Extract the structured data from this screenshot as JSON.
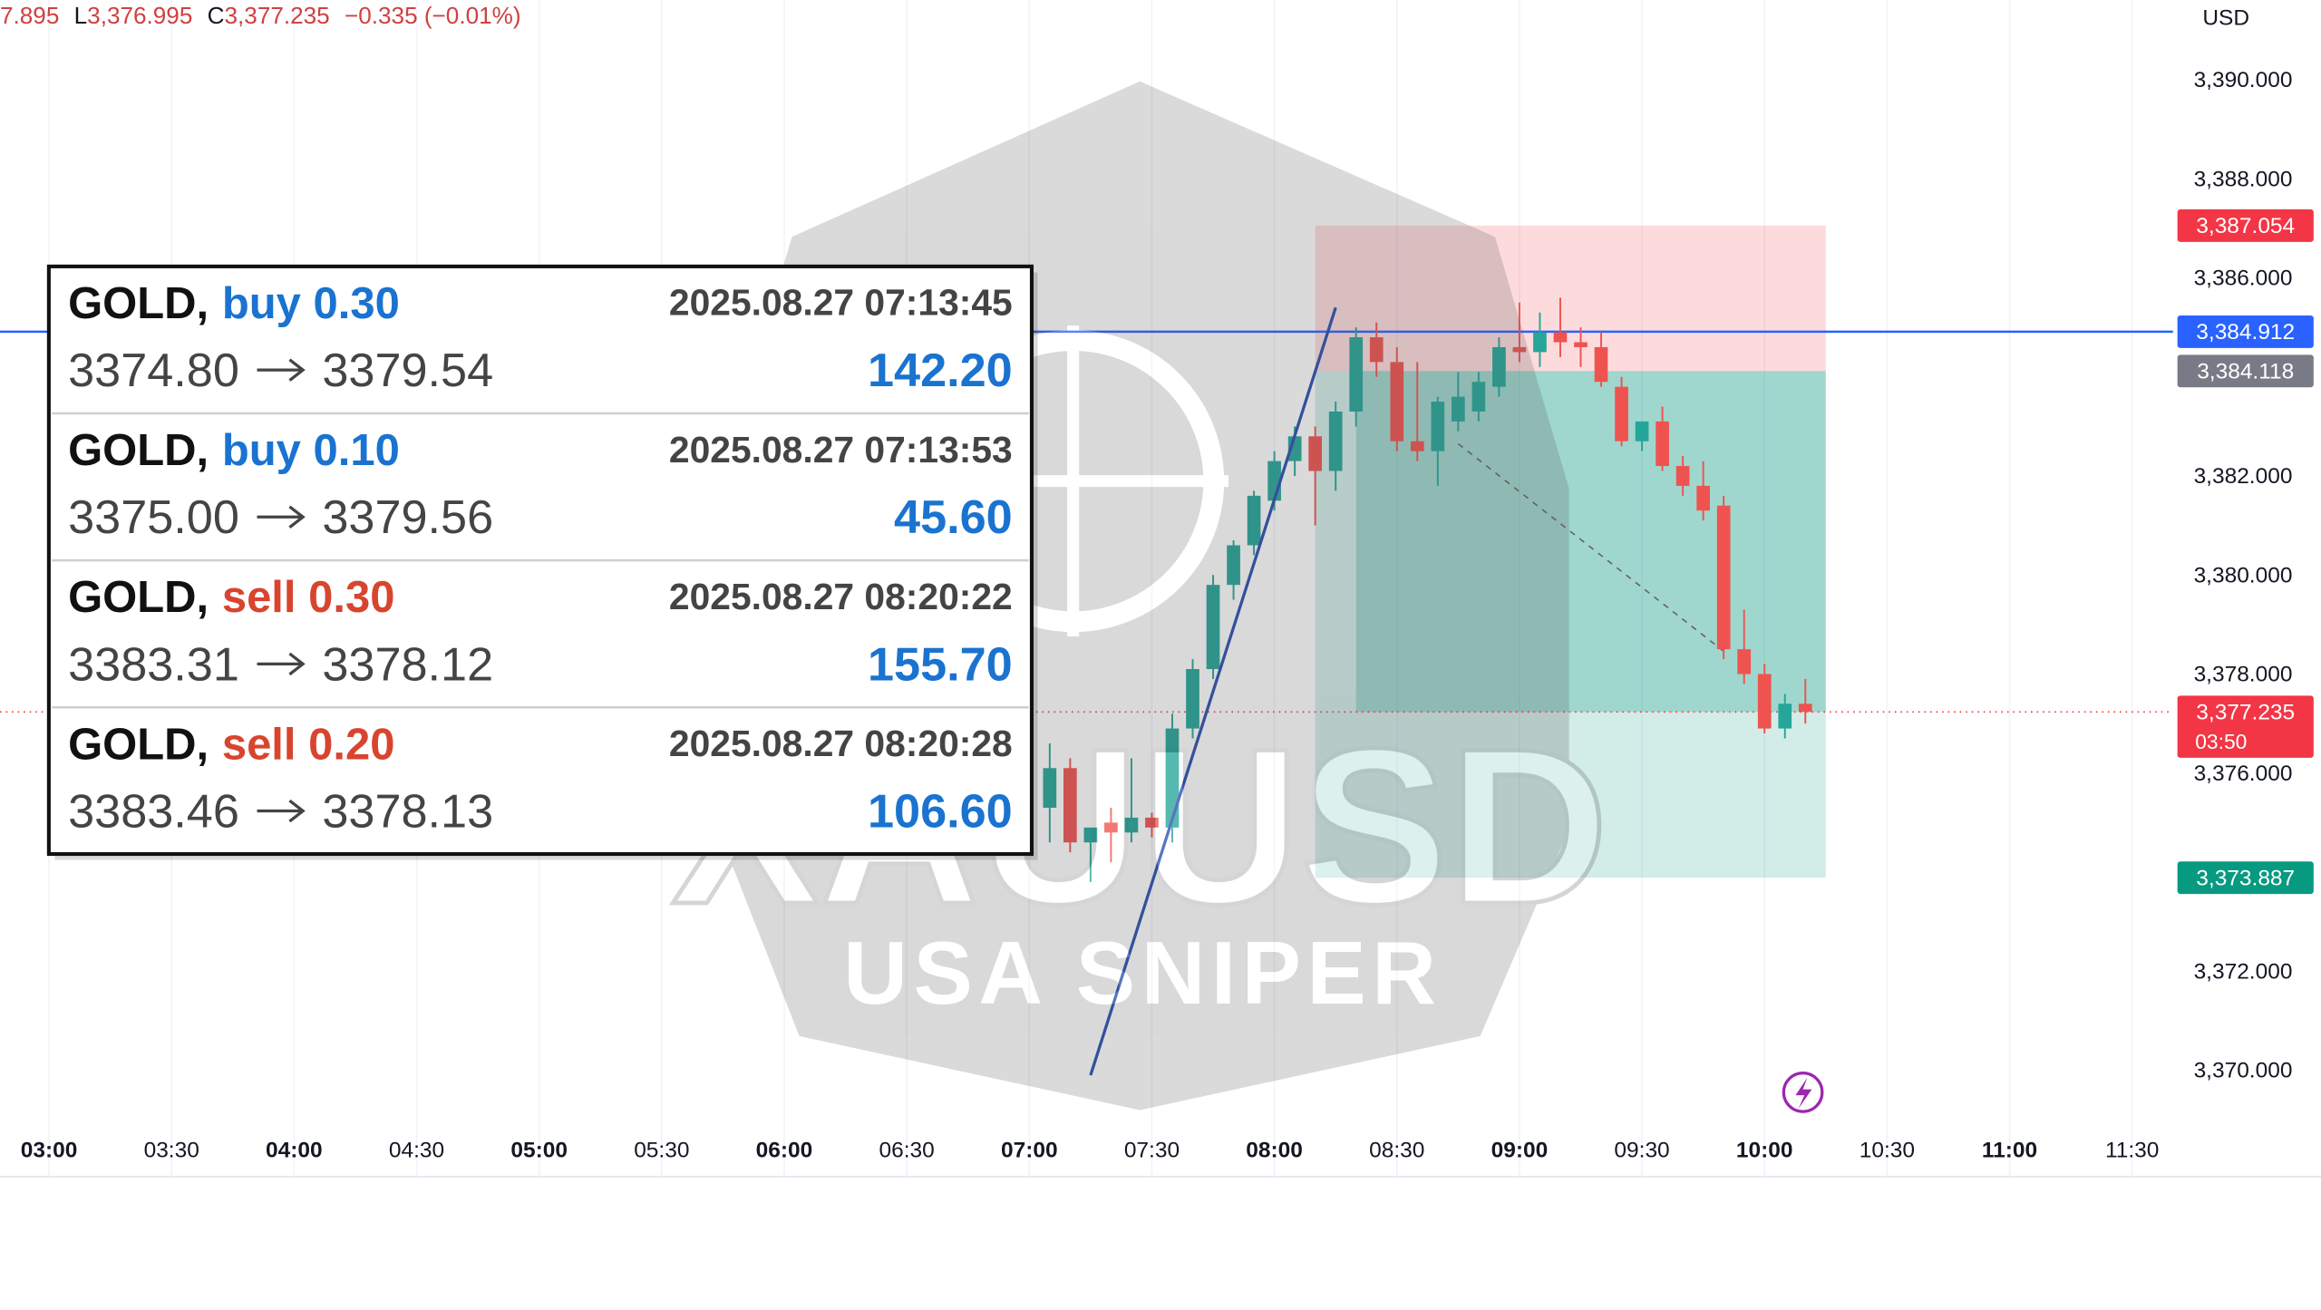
{
  "chart_data": {
    "type": "candlestick",
    "currency": "USD",
    "header": {
      "h": "7.895",
      "l_label": "L",
      "l": "3,376.995",
      "c_label": "C",
      "c": "3,377.235",
      "change": "−0.335 (−0.01%)"
    },
    "x": [
      "07:05",
      "07:10",
      "07:15",
      "07:20",
      "07:25",
      "07:30",
      "07:35",
      "07:40",
      "07:45",
      "07:50",
      "07:55",
      "08:00",
      "08:05",
      "08:10",
      "08:15",
      "08:20",
      "08:25",
      "08:30",
      "08:35",
      "08:40",
      "08:45",
      "08:50",
      "08:55",
      "09:00",
      "09:05",
      "09:10",
      "09:15",
      "09:20",
      "09:25",
      "09:30",
      "09:35",
      "09:40",
      "09:45",
      "09:50",
      "09:55",
      "10:00",
      "10:05",
      "10:10"
    ],
    "open": [
      3375.3,
      3376.1,
      3374.6,
      3375.0,
      3374.8,
      3375.1,
      3374.9,
      3376.9,
      3378.1,
      3379.8,
      3380.6,
      3381.5,
      3382.3,
      3382.8,
      3382.1,
      3383.3,
      3384.8,
      3384.3,
      3382.7,
      3382.5,
      3383.1,
      3383.3,
      3383.8,
      3384.6,
      3384.5,
      3384.9,
      3384.7,
      3384.6,
      3383.8,
      3382.7,
      3383.1,
      3382.2,
      3381.8,
      3381.4,
      3378.5,
      3378.0,
      3376.9,
      3377.4
    ],
    "high": [
      3376.6,
      3376.3,
      3374.9,
      3375.3,
      3376.3,
      3375.2,
      3377.2,
      3378.3,
      3380.0,
      3380.7,
      3381.7,
      3382.5,
      3383.0,
      3383.0,
      3383.5,
      3385.0,
      3385.1,
      3384.6,
      3384.3,
      3383.6,
      3384.1,
      3384.1,
      3384.8,
      3385.5,
      3385.3,
      3385.6,
      3385.0,
      3384.9,
      3384.0,
      3383.1,
      3383.4,
      3382.4,
      3382.3,
      3381.6,
      3379.3,
      3378.2,
      3377.6,
      3377.9
    ],
    "low": [
      3374.6,
      3374.4,
      3373.8,
      3374.2,
      3374.6,
      3374.7,
      3374.6,
      3376.7,
      3377.9,
      3379.5,
      3380.4,
      3381.3,
      3382.0,
      3381.0,
      3381.7,
      3383.0,
      3384.0,
      3382.5,
      3382.3,
      3381.8,
      3382.9,
      3383.1,
      3383.6,
      3384.3,
      3384.2,
      3384.4,
      3384.2,
      3383.8,
      3382.6,
      3382.5,
      3382.1,
      3381.6,
      3381.1,
      3378.3,
      3377.8,
      3376.8,
      3376.7,
      3377.0
    ],
    "close": [
      3376.1,
      3374.6,
      3374.9,
      3374.8,
      3375.1,
      3374.9,
      3376.9,
      3378.1,
      3379.8,
      3380.6,
      3381.6,
      3382.3,
      3382.8,
      3382.1,
      3383.3,
      3384.8,
      3384.3,
      3382.7,
      3382.5,
      3383.5,
      3383.6,
      3383.9,
      3384.6,
      3384.5,
      3384.9,
      3384.7,
      3384.6,
      3383.9,
      3382.7,
      3383.1,
      3382.2,
      3381.8,
      3381.3,
      3378.5,
      3378.0,
      3376.9,
      3377.4,
      3377.235
    ],
    "up_color": "#26a69a",
    "down_color": "#ef5350",
    "xlim": [
      "02:48",
      "11:40"
    ],
    "xticks": [
      "03:00",
      "03:30",
      "04:00",
      "04:30",
      "05:00",
      "05:30",
      "06:00",
      "06:30",
      "07:00",
      "07:30",
      "08:00",
      "08:30",
      "09:00",
      "09:30",
      "10:00",
      "10:30",
      "11:00",
      "11:30"
    ],
    "ylim": [
      3367.85,
      3391.61
    ],
    "yticks": [
      {
        "value": 3370,
        "label": "3,370.000"
      },
      {
        "value": 3372,
        "label": "3,372.000"
      },
      {
        "value": 3374,
        "label": "3,374.000"
      },
      {
        "value": 3376,
        "label": "3,376.000"
      },
      {
        "value": 3378,
        "label": "3,378.000"
      },
      {
        "value": 3380,
        "label": "3,380.000"
      },
      {
        "value": 3382,
        "label": "3,382.000"
      },
      {
        "value": 3384,
        "label": "3,384.000"
      },
      {
        "value": 3386,
        "label": "3,386.000"
      },
      {
        "value": 3388,
        "label": "3,388.000"
      },
      {
        "value": 3390,
        "label": "3,390.000"
      }
    ],
    "grid": true,
    "horizontal_line": {
      "value": 3384.912,
      "label": "3,384.912",
      "color": "#2962ff"
    },
    "last_price": {
      "value": 3377.235,
      "label": "3,377.235",
      "countdown": "03:50",
      "color": "#f23645"
    },
    "position": {
      "x": [
        "08:10",
        "10:15"
      ],
      "filled_at": "08:20",
      "stop": {
        "value": 3387.054,
        "label": "3,387.054",
        "color": "#f23645"
      },
      "entry": {
        "value": 3384.118,
        "label": "3,384.118",
        "color": "#787b86"
      },
      "target": {
        "value": 3373.887,
        "label": "3,373.887",
        "color": "#089981"
      }
    },
    "trendline": {
      "x": [
        "07:15",
        "08:15"
      ],
      "values": [
        3369.9,
        3385.4
      ],
      "color": "#2a4fb0"
    },
    "dashed_line": {
      "x": [
        "08:45",
        "09:50"
      ],
      "values": [
        3382.65,
        3378.46
      ]
    }
  },
  "watermark": {
    "title": "XAUUSD",
    "subtitle": "USA SNIPER"
  },
  "trade_panel": {
    "trades": [
      {
        "symbol": "GOLD,",
        "side": "buy 0.30",
        "side_color": "#1a73d0",
        "time": "2025.08.27 07:13:45",
        "open": "3374.80",
        "close": "3379.54",
        "profit": "142.20"
      },
      {
        "symbol": "GOLD,",
        "side": "buy 0.10",
        "side_color": "#1a73d0",
        "time": "2025.08.27 07:13:53",
        "open": "3375.00",
        "close": "3379.56",
        "profit": "45.60"
      },
      {
        "symbol": "GOLD,",
        "side": "sell 0.30",
        "side_color": "#d8452e",
        "time": "2025.08.27 08:20:22",
        "open": "3383.31",
        "close": "3378.12",
        "profit": "155.70"
      },
      {
        "symbol": "GOLD,",
        "side": "sell 0.20",
        "side_color": "#d8452e",
        "time": "2025.08.27 08:20:28",
        "open": "3383.46",
        "close": "3378.13",
        "profit": "106.60"
      }
    ],
    "profit_color": "#1a73d0"
  }
}
